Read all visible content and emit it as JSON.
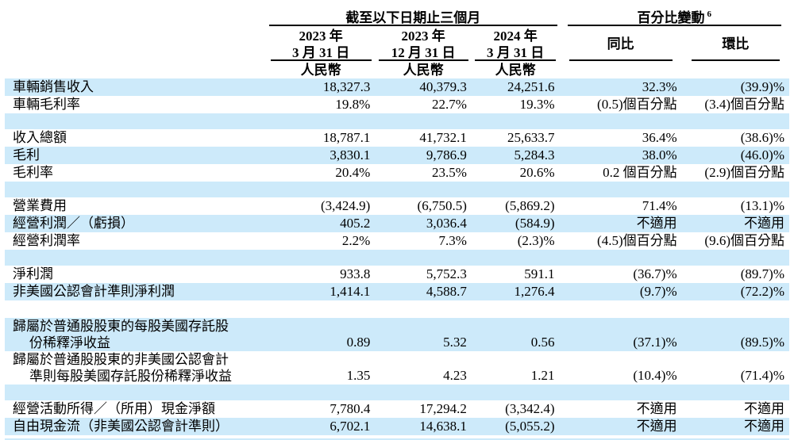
{
  "colors": {
    "row_stripe": "#cdeafa",
    "text": "#000000",
    "rule": "#000000"
  },
  "header": {
    "period_group": "截至以下日期止三個月",
    "pct_group": "百分比變動",
    "pct_superscript": "6",
    "cols": [
      {
        "line1": "2023 年",
        "line2": "3 月 31 日",
        "currency": "人民幣"
      },
      {
        "line1": "2023 年",
        "line2": "12 月 31 日",
        "currency": "人民幣"
      },
      {
        "line1": "2024 年",
        "line2": "3 月 31 日",
        "currency": "人民幣"
      }
    ],
    "yoy": "同比",
    "qoq": "環比"
  },
  "rows": [
    {
      "type": "data",
      "shaded": true,
      "label": "車輛銷售收入",
      "values": [
        "18,327.3",
        "40,379.3",
        "24,251.6",
        "32.3%",
        "(39.9)%"
      ]
    },
    {
      "type": "data",
      "shaded": false,
      "label": "車輛毛利率",
      "values": [
        "19.8%",
        "22.7%",
        "19.3%",
        "(0.5)個百分點",
        "(3.4)個百分點"
      ]
    },
    {
      "type": "spacer_blue"
    },
    {
      "type": "data",
      "shaded": false,
      "label": "收入總額",
      "values": [
        "18,787.1",
        "41,732.1",
        "25,633.7",
        "36.4%",
        "(38.6)%"
      ]
    },
    {
      "type": "data",
      "shaded": true,
      "label": "毛利",
      "values": [
        "3,830.1",
        "9,786.9",
        "5,284.3",
        "38.0%",
        "(46.0)%"
      ]
    },
    {
      "type": "data",
      "shaded": false,
      "label": "毛利率",
      "values": [
        "20.4%",
        "23.5%",
        "20.6%",
        "0.2 個百分點",
        "(2.9)個百分點"
      ]
    },
    {
      "type": "spacer_blue"
    },
    {
      "type": "data",
      "shaded": false,
      "label": "營業費用",
      "values": [
        "(3,424.9)",
        "(6,750.5)",
        "(5,869.2)",
        "71.4%",
        "(13.1)%"
      ]
    },
    {
      "type": "data",
      "shaded": true,
      "label": "經營利潤／（虧損）",
      "values": [
        "405.2",
        "3,036.4",
        "(584.9)",
        "不適用",
        "不適用"
      ]
    },
    {
      "type": "data",
      "shaded": false,
      "label": "經營利潤率",
      "values": [
        "2.2%",
        "7.3%",
        "(2.3)%",
        "(4.5)個百分點",
        "(9.6)個百分點"
      ]
    },
    {
      "type": "spacer_blue"
    },
    {
      "type": "data",
      "shaded": false,
      "label": "淨利潤",
      "values": [
        "933.8",
        "5,752.3",
        "591.1",
        "(36.7)%",
        "(89.7)%"
      ]
    },
    {
      "type": "data",
      "shaded": true,
      "label": "非美國公認會計準則淨利潤",
      "values": [
        "1,414.1",
        "4,588.7",
        "1,276.4",
        "(9.7)%",
        "(72.2)%"
      ]
    },
    {
      "type": "spacer_white"
    },
    {
      "type": "data",
      "shaded": true,
      "label": "歸屬於普通股股東的每股美國存託股",
      "label2": "份稀釋淨收益",
      "values": [
        "0.89",
        "5.32",
        "0.56",
        "(37.1)%",
        "(89.5)%"
      ]
    },
    {
      "type": "data",
      "shaded": false,
      "label": "歸屬於普通股股東的非美國公認會計",
      "label2": "準則每股美國存託股份稀釋淨收益",
      "values": [
        "1.35",
        "4.23",
        "1.21",
        "(10.4)%",
        "(71.4)%"
      ]
    },
    {
      "type": "spacer_blue"
    },
    {
      "type": "data",
      "shaded": false,
      "label": "經營活動所得／（所用）現金淨額",
      "values": [
        "7,780.4",
        "17,294.2",
        "(3,342.4)",
        "不適用",
        "不適用"
      ]
    },
    {
      "type": "data",
      "shaded": true,
      "label": "自由現金流（非美國公認會計準則）",
      "values": [
        "6,702.1",
        "14,638.1",
        "(5,055.2)",
        "不適用",
        "不適用"
      ]
    },
    {
      "type": "spacer_gap"
    },
    {
      "type": "spacer_bar"
    }
  ]
}
